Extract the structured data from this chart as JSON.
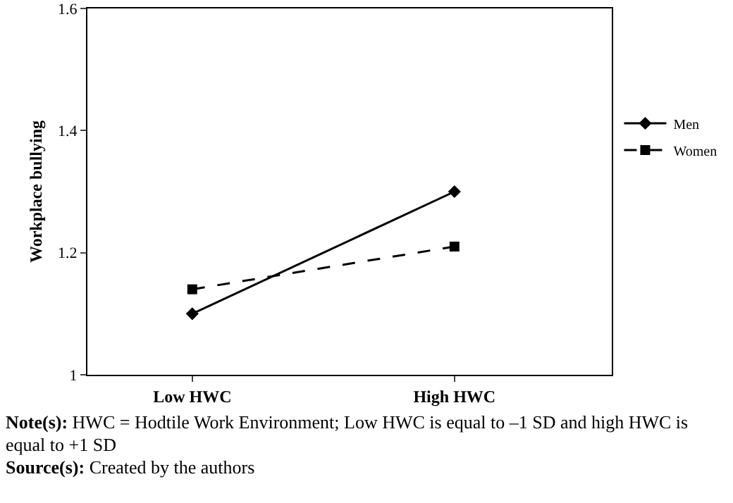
{
  "chart_data": {
    "type": "line",
    "ylabel": "Workplace bullying",
    "categories": [
      "Low HWC",
      "High HWC"
    ],
    "series": [
      {
        "name": "Men",
        "color": "#000000",
        "values": [
          1.1,
          1.3
        ],
        "marker": "diamond",
        "line_style": "solid"
      },
      {
        "name": "Women",
        "color": "#000000",
        "values": [
          1.14,
          1.21
        ],
        "marker": "square",
        "line_style": "dashed"
      }
    ],
    "ylim": [
      1,
      1.6
    ],
    "yticks": [
      1,
      1.2,
      1.4,
      1.6
    ],
    "grid": false,
    "legend": "right",
    "annotations": [
      "Note(s): HWC = Hodtile Work Environment; Low HWC is equal to –1 SD and high HWC is equal to +1 SD",
      "Source(s): Created by the authors"
    ]
  }
}
